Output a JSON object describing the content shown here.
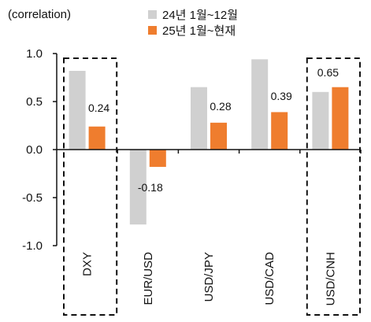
{
  "chart_data": {
    "type": "bar",
    "y_unit_label": "(correlation)",
    "categories": [
      "DXY",
      "EUR/USD",
      "USD/JPY",
      "USD/CAD",
      "USD/CNH"
    ],
    "series": [
      {
        "name": "24년 1월~12월",
        "color": "#d0d0d0",
        "values": [
          0.82,
          -0.78,
          0.65,
          0.94,
          0.6
        ]
      },
      {
        "name": "25년 1월~현재",
        "color": "#ef7d2e",
        "values": [
          0.24,
          -0.18,
          0.28,
          0.39,
          0.65
        ]
      }
    ],
    "data_labels": [
      {
        "category": "DXY",
        "series": 1,
        "text": "0.24"
      },
      {
        "category": "EUR/USD",
        "series": 1,
        "text": "-0.18"
      },
      {
        "category": "USD/JPY",
        "series": 1,
        "text": "0.28"
      },
      {
        "category": "USD/CAD",
        "series": 1,
        "text": "0.39"
      },
      {
        "category": "USD/CNH",
        "series": 1,
        "text": "0.65"
      }
    ],
    "ylim": [
      -1.0,
      1.0
    ],
    "yticks": [
      "1.0",
      "0.5",
      "0.0",
      "-0.5",
      "-1.0"
    ],
    "highlighted_categories": [
      "DXY",
      "USD/CNH"
    ],
    "grid": false,
    "legend_position": "top-center"
  }
}
